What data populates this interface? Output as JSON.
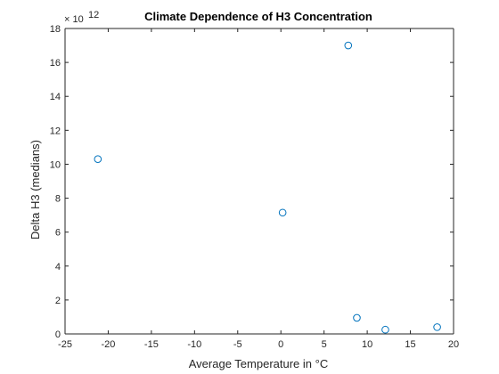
{
  "chart_data": {
    "type": "scatter",
    "title": "Climate Dependence of H3 Concentration",
    "xlabel": "Average Temperature in °C",
    "ylabel": "Delta H3 (medians)",
    "xlim": [
      -25,
      20
    ],
    "ylim": [
      0,
      18
    ],
    "x_ticks": [
      -25,
      -20,
      -15,
      -10,
      -5,
      0,
      5,
      10,
      15,
      20
    ],
    "y_ticks": [
      0,
      2,
      4,
      6,
      8,
      10,
      12,
      14,
      16,
      18
    ],
    "y_multiplier": {
      "base": "× 10",
      "exponent": "12"
    },
    "grid": false,
    "marker": "open-circle",
    "series": [
      {
        "points": [
          {
            "x": -21.2,
            "y": 10.3
          },
          {
            "x": 0.2,
            "y": 7.15
          },
          {
            "x": 7.8,
            "y": 17.0
          },
          {
            "x": 8.8,
            "y": 0.95
          },
          {
            "x": 12.1,
            "y": 0.25
          },
          {
            "x": 18.1,
            "y": 0.4
          }
        ]
      }
    ],
    "colors": {
      "marker": "#0072bd",
      "axis": "#262626"
    }
  }
}
